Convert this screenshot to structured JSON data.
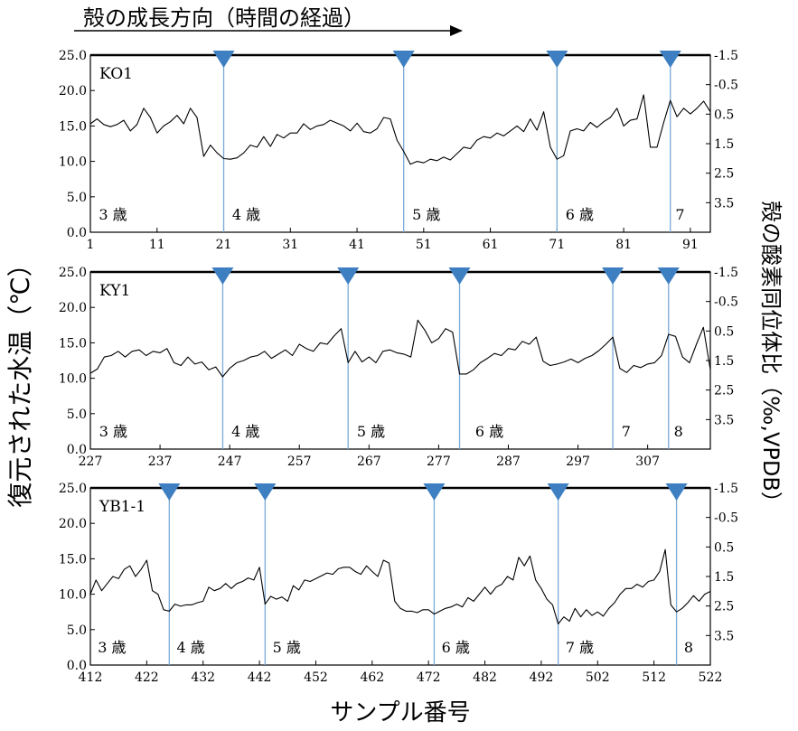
{
  "header": {
    "direction_label": "殻の成長方向（時間の経過）"
  },
  "axes": {
    "left_label": "復元された水温（℃）",
    "right_label": "殻の酸素同位体比（‰,VPDB）",
    "x_label": "サンプル番号",
    "left_ticks": [
      "0.0",
      "5.0",
      "10.0",
      "15.0",
      "20.0",
      "25.0"
    ],
    "right_ticks": [
      "-1.5",
      "-0.5",
      "0.5",
      "1.5",
      "2.5",
      "3.5"
    ]
  },
  "colors": {
    "line": "#000000",
    "marker": "#3d7fc1",
    "marker_line": "#7aaad8"
  },
  "chart_data": [
    {
      "type": "line",
      "panel_label": "KO1",
      "xlim": [
        1,
        94
      ],
      "ylim": [
        0,
        25
      ],
      "y2lim": [
        4.5,
        -1.5
      ],
      "x_ticks": [
        1,
        11,
        21,
        31,
        41,
        51,
        61,
        71,
        81,
        91
      ],
      "markers": [
        21,
        48,
        71,
        88
      ],
      "age_labels": [
        {
          "text": "3 歳",
          "x": 2
        },
        {
          "text": "4 歳",
          "x": 22
        },
        {
          "text": "5 歳",
          "x": 49
        },
        {
          "text": "6 歳",
          "x": 72
        },
        {
          "text": "7",
          "x": 88.5
        }
      ],
      "x": [
        1,
        2,
        3,
        4,
        5,
        6,
        7,
        8,
        9,
        10,
        11,
        12,
        13,
        14,
        15,
        16,
        17,
        18,
        19,
        20,
        21,
        22,
        23,
        24,
        25,
        26,
        27,
        28,
        29,
        30,
        31,
        32,
        33,
        34,
        35,
        36,
        37,
        38,
        39,
        40,
        41,
        42,
        43,
        44,
        45,
        46,
        47,
        48,
        49,
        50,
        51,
        52,
        53,
        54,
        55,
        56,
        57,
        58,
        59,
        60,
        61,
        62,
        63,
        64,
        65,
        66,
        67,
        68,
        69,
        70,
        71,
        72,
        73,
        74,
        75,
        76,
        77,
        78,
        79,
        80,
        81,
        82,
        83,
        84,
        85,
        86,
        87,
        88,
        89,
        90,
        91,
        92,
        93,
        94
      ],
      "y": [
        15.3,
        16.0,
        15.2,
        14.9,
        15.2,
        15.8,
        14.3,
        15.2,
        17.5,
        16.2,
        14.0,
        15.0,
        15.6,
        16.5,
        15.3,
        17.5,
        16.2,
        10.7,
        12.3,
        11.2,
        10.4,
        10.3,
        10.5,
        11.2,
        12.3,
        12.0,
        13.5,
        12.1,
        13.8,
        13.3,
        14.0,
        14.0,
        15.3,
        14.5,
        15.0,
        15.2,
        15.8,
        15.4,
        15.0,
        14.3,
        15.4,
        14.2,
        14.0,
        14.6,
        16.2,
        16.0,
        13.0,
        11.4,
        9.6,
        10.0,
        9.8,
        10.3,
        10.1,
        10.6,
        10.2,
        11.1,
        12.0,
        11.8,
        13.0,
        13.5,
        13.3,
        14.0,
        13.6,
        14.3,
        15.0,
        14.2,
        16.0,
        14.4,
        17.0,
        12.0,
        10.3,
        10.8,
        14.3,
        14.6,
        14.3,
        15.5,
        14.8,
        15.6,
        16.2,
        17.5,
        15.0,
        15.8,
        16.0,
        19.4,
        12.0,
        12.0,
        15.5,
        18.6,
        16.3,
        17.5,
        16.7,
        17.5,
        18.5,
        17.0
      ]
    },
    {
      "type": "line",
      "panel_label": "KY1",
      "xlim": [
        227,
        316
      ],
      "ylim": [
        0,
        25
      ],
      "y2lim": [
        4.5,
        -1.5
      ],
      "x_ticks": [
        227,
        237,
        247,
        257,
        267,
        277,
        287,
        297,
        307
      ],
      "markers": [
        246,
        264,
        280,
        302,
        310
      ],
      "age_labels": [
        {
          "text": "3 歳",
          "x": 228
        },
        {
          "text": "4 歳",
          "x": 247
        },
        {
          "text": "5 歳",
          "x": 265
        },
        {
          "text": "6 歳",
          "x": 282
        },
        {
          "text": "7",
          "x": 303
        },
        {
          "text": "8",
          "x": 310.5
        }
      ],
      "x": [
        227,
        228,
        229,
        230,
        231,
        232,
        233,
        234,
        235,
        236,
        237,
        238,
        239,
        240,
        241,
        242,
        243,
        244,
        245,
        246,
        247,
        248,
        249,
        250,
        251,
        252,
        253,
        254,
        255,
        256,
        257,
        258,
        259,
        260,
        261,
        262,
        263,
        264,
        265,
        266,
        267,
        268,
        269,
        270,
        271,
        272,
        273,
        274,
        275,
        276,
        277,
        278,
        279,
        280,
        281,
        282,
        283,
        284,
        285,
        286,
        287,
        288,
        289,
        290,
        291,
        292,
        293,
        294,
        295,
        296,
        297,
        298,
        299,
        300,
        301,
        302,
        303,
        304,
        305,
        306,
        307,
        308,
        309,
        310,
        311,
        312,
        313,
        314,
        315,
        316
      ],
      "y": [
        10.7,
        11.3,
        13.0,
        13.2,
        13.8,
        13.0,
        13.8,
        14.0,
        13.2,
        13.8,
        13.6,
        14.2,
        12.2,
        11.8,
        13.0,
        12.0,
        12.3,
        11.2,
        11.6,
        10.2,
        11.4,
        12.2,
        12.5,
        13.0,
        13.2,
        13.8,
        12.8,
        13.4,
        14.0,
        13.2,
        14.8,
        14.2,
        13.8,
        15.0,
        14.8,
        16.0,
        17.0,
        12.2,
        13.8,
        12.3,
        13.0,
        12.2,
        13.8,
        14.0,
        13.6,
        13.4,
        13.0,
        18.2,
        16.8,
        15.0,
        15.6,
        17.0,
        16.5,
        10.6,
        10.6,
        11.2,
        12.2,
        12.8,
        13.5,
        13.2,
        14.2,
        14.0,
        15.2,
        14.8,
        15.8,
        12.4,
        11.8,
        12.0,
        12.3,
        12.7,
        12.2,
        12.8,
        13.2,
        13.9,
        14.8,
        15.8,
        11.4,
        10.8,
        11.8,
        11.5,
        12.0,
        12.2,
        13.2,
        16.2,
        15.9,
        13.0,
        12.2,
        14.8,
        17.2,
        11.2
      ]
    },
    {
      "type": "line",
      "panel_label": "YB1-1",
      "xlim": [
        412,
        522
      ],
      "ylim": [
        0,
        25
      ],
      "y2lim": [
        4.5,
        -1.5
      ],
      "x_ticks": [
        412,
        422,
        432,
        442,
        452,
        462,
        472,
        482,
        492,
        502,
        512,
        522
      ],
      "markers": [
        426,
        443,
        473,
        495,
        516
      ],
      "age_labels": [
        {
          "text": "3 歳",
          "x": 413
        },
        {
          "text": "4 歳",
          "x": 427
        },
        {
          "text": "5 歳",
          "x": 444
        },
        {
          "text": "6 歳",
          "x": 474
        },
        {
          "text": "7 歳",
          "x": 496
        },
        {
          "text": "8",
          "x": 517
        }
      ],
      "x": [
        412,
        413,
        414,
        415,
        416,
        417,
        418,
        419,
        420,
        421,
        422,
        423,
        424,
        425,
        426,
        427,
        428,
        429,
        430,
        431,
        432,
        433,
        434,
        435,
        436,
        437,
        438,
        439,
        440,
        441,
        442,
        443,
        444,
        445,
        446,
        447,
        448,
        449,
        450,
        451,
        452,
        453,
        454,
        455,
        456,
        457,
        458,
        459,
        460,
        461,
        462,
        463,
        464,
        465,
        466,
        467,
        468,
        469,
        470,
        471,
        472,
        473,
        474,
        475,
        476,
        477,
        478,
        479,
        480,
        481,
        482,
        483,
        484,
        485,
        486,
        487,
        488,
        489,
        490,
        491,
        492,
        493,
        494,
        495,
        496,
        497,
        498,
        499,
        500,
        501,
        502,
        503,
        504,
        505,
        506,
        507,
        508,
        509,
        510,
        511,
        512,
        513,
        514,
        515,
        516,
        517,
        518,
        519,
        520,
        521,
        522
      ],
      "y": [
        10.0,
        12.0,
        10.5,
        11.5,
        12.5,
        12.2,
        13.5,
        14.0,
        12.5,
        13.5,
        14.8,
        10.5,
        10.0,
        7.8,
        7.6,
        8.6,
        8.3,
        8.5,
        8.5,
        8.8,
        9.0,
        11.0,
        10.5,
        10.8,
        11.5,
        10.8,
        11.5,
        11.8,
        12.3,
        12.0,
        13.8,
        8.6,
        9.7,
        9.3,
        9.6,
        9.0,
        11.2,
        10.6,
        12.0,
        11.8,
        12.2,
        12.6,
        13.0,
        12.8,
        13.6,
        13.8,
        13.8,
        13.2,
        12.8,
        14.0,
        13.2,
        12.5,
        14.8,
        14.4,
        9.0,
        8.0,
        7.6,
        7.6,
        7.4,
        7.8,
        7.8,
        7.2,
        7.6,
        8.0,
        8.2,
        8.6,
        8.2,
        9.5,
        9.0,
        10.0,
        11.0,
        10.0,
        11.0,
        11.4,
        12.5,
        12.0,
        15.2,
        14.0,
        15.4,
        12.0,
        10.8,
        9.3,
        8.5,
        5.8,
        6.8,
        6.2,
        8.0,
        6.8,
        7.8,
        7.0,
        7.5,
        6.9,
        8.0,
        8.8,
        10.0,
        10.8,
        10.8,
        11.4,
        11.0,
        11.8,
        12.0,
        13.2,
        16.3,
        8.5,
        7.5,
        8.0,
        8.8,
        9.8,
        9.0,
        10.0,
        10.4
      ]
    }
  ]
}
